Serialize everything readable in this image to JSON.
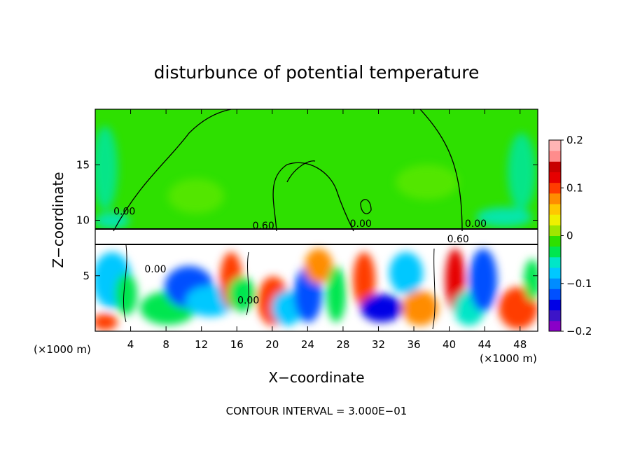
{
  "chart_data": {
    "type": "heatmap",
    "title": "disturbunce of potential temperature",
    "xlabel": "X−coordinate",
    "ylabel": "Z−coordinate",
    "x_unit_left": "(×1000 m)",
    "x_unit_right": "(×1000 m)",
    "xlim": [
      0,
      50
    ],
    "ylim": [
      0,
      20
    ],
    "x_ticks": [
      4,
      8,
      12,
      16,
      20,
      24,
      28,
      32,
      36,
      40,
      44,
      48
    ],
    "x_tick_labels": [
      "4",
      "8",
      "12",
      "16",
      "20",
      "24",
      "28",
      "32",
      "36",
      "40",
      "44",
      "48"
    ],
    "y_ticks": [
      5,
      10,
      15
    ],
    "y_tick_labels": [
      "5",
      "10",
      "15"
    ],
    "colorbar": {
      "range": [
        -0.2,
        0.2
      ],
      "ticks": [
        0.2,
        0.1,
        0,
        -0.1,
        -0.2
      ],
      "tick_labels": [
        "0.2",
        "0.1",
        "0",
        "−0.1",
        "−0.2"
      ],
      "colors": [
        "#8a00c8",
        "#3c14c8",
        "#0000e6",
        "#0050ff",
        "#008cff",
        "#00c8ff",
        "#00e6c8",
        "#00e650",
        "#2ee000",
        "#a0e600",
        "#f0f000",
        "#ffc800",
        "#ff8c00",
        "#ff3c00",
        "#e60000",
        "#c80000",
        "#ff8c8c",
        "#ffb4b4"
      ]
    },
    "contour_labels": [
      {
        "text": "0.00",
        "x": 3.3,
        "y": 10.5
      },
      {
        "text": "0.60",
        "x": 19.0,
        "y": 9.2
      },
      {
        "text": "0.00",
        "x": 30.0,
        "y": 9.4
      },
      {
        "text": "0.00",
        "x": 43.0,
        "y": 9.4
      },
      {
        "text": "0.60",
        "x": 41.0,
        "y": 8.0
      },
      {
        "text": "0.00",
        "x": 6.8,
        "y": 5.3
      },
      {
        "text": "0.00",
        "x": 17.3,
        "y": 2.5
      }
    ],
    "contour_interval_text": "CONTOUR INTERVAL = 3.000E−01"
  }
}
